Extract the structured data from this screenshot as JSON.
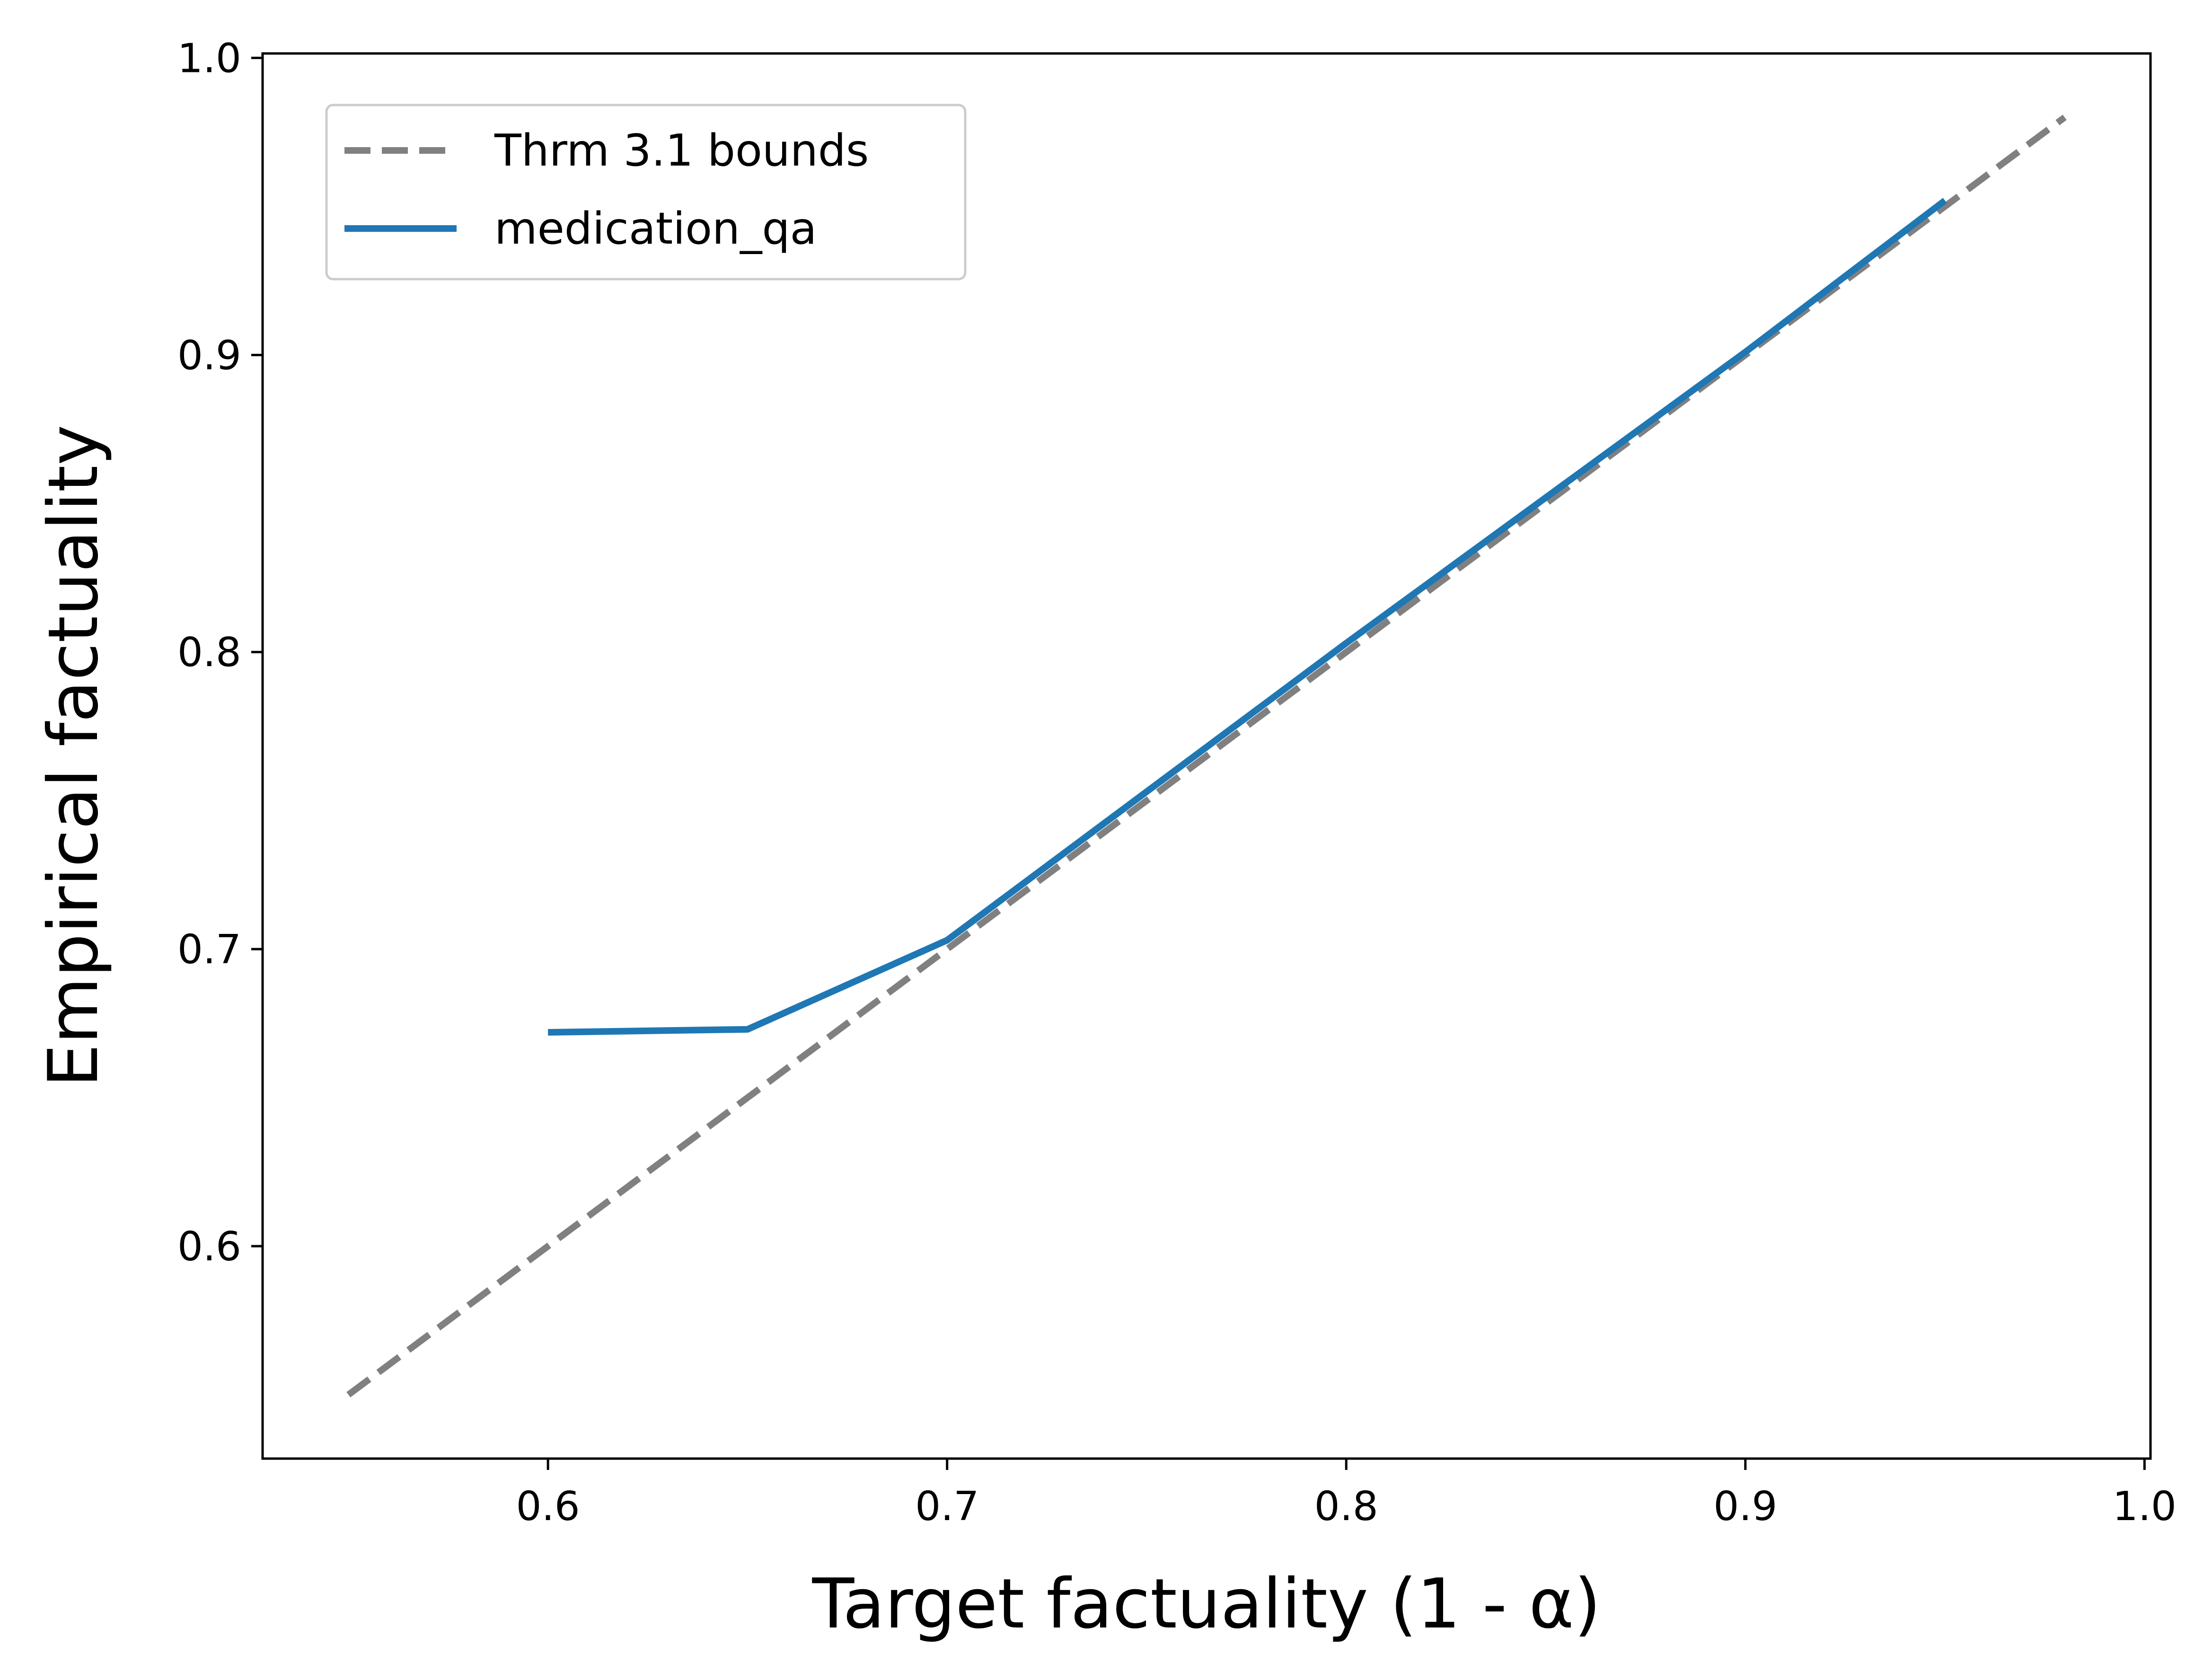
{
  "chart_data": {
    "type": "line",
    "xlabel": "Target factuality (1 - α)",
    "ylabel": "Empirical factuality",
    "xlim": [
      0.5285,
      1.0015
    ],
    "ylim": [
      0.5285,
      1.0015
    ],
    "xticks": [
      0.6,
      0.7,
      0.8,
      0.9,
      1.0
    ],
    "yticks": [
      0.6,
      0.7,
      0.8,
      0.9,
      1.0
    ],
    "xtick_labels": [
      "0.6",
      "0.7",
      "0.8",
      "0.9",
      "1.0"
    ],
    "ytick_labels": [
      "0.6",
      "0.7",
      "0.8",
      "0.9",
      "1.0"
    ],
    "grid": false,
    "legend_position": "upper-left",
    "series": [
      {
        "name": "Thrm 3.1 bounds",
        "style": "dashed",
        "color": "#808080",
        "x": [
          0.55,
          0.98
        ],
        "y": [
          0.55,
          0.98
        ]
      },
      {
        "name": "medication_qa",
        "style": "solid",
        "color": "#1f77b4",
        "x": [
          0.6,
          0.65,
          0.7,
          0.75,
          0.8,
          0.85,
          0.9,
          0.95
        ],
        "y": [
          0.672,
          0.673,
          0.703,
          0.753,
          0.803,
          0.852,
          0.901,
          0.952
        ]
      }
    ]
  }
}
